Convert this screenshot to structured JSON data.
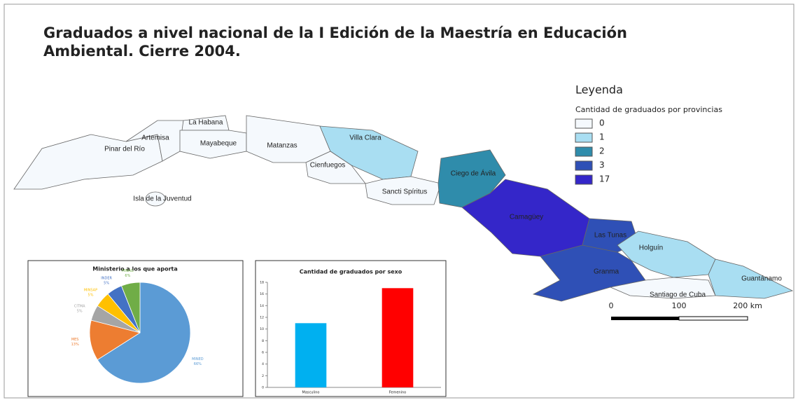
{
  "title": [
    "Graduados a nivel nacional de la I Edición de la Maestría en Educación",
    "Ambiental. Cierre 2004."
  ],
  "legend": {
    "title": "Leyenda",
    "heading": "Cantidad de graduados por provincias",
    "items": [
      {
        "label": "0",
        "color": "#f5f9fd"
      },
      {
        "label": "1",
        "color": "#a9def2"
      },
      {
        "label": "2",
        "color": "#2f8cab"
      },
      {
        "label": "3",
        "color": "#2f50b6"
      },
      {
        "label": "17",
        "color": "#3426c9"
      }
    ]
  },
  "provinces": [
    {
      "name": "Pinar del Río",
      "color": "#f5f9fd"
    },
    {
      "name": "Artemisa",
      "color": "#f5f9fd"
    },
    {
      "name": "La Habana",
      "color": "#f5f9fd"
    },
    {
      "name": "Mayabeque",
      "color": "#f5f9fd"
    },
    {
      "name": "Matanzas",
      "color": "#f5f9fd"
    },
    {
      "name": "Villa Clara",
      "color": "#a9def2"
    },
    {
      "name": "Cienfuegos",
      "color": "#f5f9fd"
    },
    {
      "name": "Sancti Spíritus",
      "color": "#f5f9fd"
    },
    {
      "name": "Ciego de Ávila",
      "color": "#2f8cab"
    },
    {
      "name": "Camagüey",
      "color": "#3426c9"
    },
    {
      "name": "Las Tunas",
      "color": "#2f50b6"
    },
    {
      "name": "Holguín",
      "color": "#a9def2"
    },
    {
      "name": "Granma",
      "color": "#2f50b6"
    },
    {
      "name": "Santiago de Cuba",
      "color": "#f5f9fd"
    },
    {
      "name": "Guantánamo",
      "color": "#a9def2"
    },
    {
      "name": "Isla de la Juventud",
      "color": "#f5f9fd"
    }
  ],
  "scale_bar": {
    "labels": [
      "0",
      "100",
      "200 km"
    ]
  },
  "chart_data": [
    {
      "type": "pie",
      "title": "Ministerio a los que aporta",
      "categories": [
        "MINED",
        "MES",
        "CITMA",
        "MINSAP",
        "INDER",
        "MINAG"
      ],
      "values": [
        66,
        13,
        5,
        5,
        5,
        6
      ],
      "value_labels": [
        "66%",
        "13%",
        "5%",
        "5%",
        "5%",
        "6%"
      ],
      "colors": [
        "#5b9bd5",
        "#ed7d31",
        "#a5a5a5",
        "#ffc000",
        "#4472c4",
        "#70ad47"
      ]
    },
    {
      "type": "bar",
      "title": "Cantidad de graduados por sexo",
      "categories": [
        "Masculino",
        "Femenino"
      ],
      "values": [
        11,
        17
      ],
      "colors": [
        "#00b0f0",
        "#ff0000"
      ],
      "ylim": [
        0,
        18
      ],
      "yticks": [
        0,
        2,
        4,
        6,
        8,
        10,
        12,
        14,
        16,
        18
      ],
      "grid": false
    }
  ]
}
